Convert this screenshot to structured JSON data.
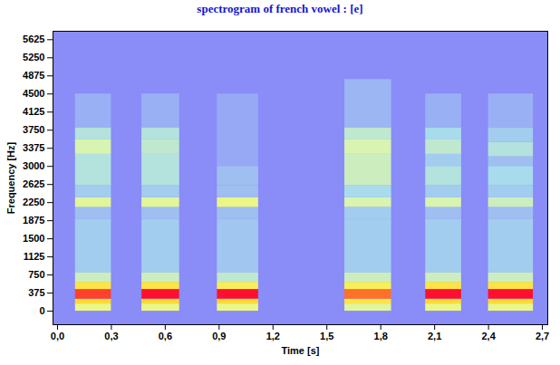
{
  "chart_data": {
    "type": "heatmap",
    "title": "spectrogram of french vowel : [e]",
    "x_label": "Time [s]",
    "y_label": "Frequency [Hz]",
    "xlim": [
      -0.025,
      2.73
    ],
    "ylim": [
      -280,
      5800
    ],
    "xticks": [
      {
        "value": 0,
        "label": "0,0"
      },
      {
        "value": 0.3,
        "label": "0,3"
      },
      {
        "value": 0.6,
        "label": "0,6"
      },
      {
        "value": 0.9,
        "label": "0,9"
      },
      {
        "value": 1.2,
        "label": "1,2"
      },
      {
        "value": 1.5,
        "label": "1,5"
      },
      {
        "value": 1.8,
        "label": "1,8"
      },
      {
        "value": 2.1,
        "label": "2,1"
      },
      {
        "value": 2.4,
        "label": "2,4"
      },
      {
        "value": 2.7,
        "label": "2,7"
      }
    ],
    "yticks": [
      0,
      375,
      750,
      1125,
      1500,
      1875,
      2250,
      2625,
      3000,
      3375,
      3750,
      4125,
      4500,
      4875,
      5250,
      5625
    ],
    "grid": false,
    "zlim": [
      0,
      1
    ],
    "segments": [
      {
        "start": 0.1,
        "end": 0.3,
        "bands": [
          [
            0,
            150,
            0.55
          ],
          [
            150,
            250,
            0.75
          ],
          [
            250,
            450,
            0.95
          ],
          [
            450,
            600,
            0.7
          ],
          [
            600,
            800,
            0.4
          ],
          [
            800,
            1900,
            0.2
          ],
          [
            1900,
            2150,
            0.15
          ],
          [
            2150,
            2350,
            0.5
          ],
          [
            2350,
            2600,
            0.2
          ],
          [
            2600,
            3250,
            0.3
          ],
          [
            3250,
            3550,
            0.45
          ],
          [
            3550,
            3800,
            0.3
          ],
          [
            3800,
            4500,
            0.1
          ]
        ]
      },
      {
        "start": 0.47,
        "end": 0.68,
        "bands": [
          [
            0,
            150,
            0.55
          ],
          [
            150,
            250,
            0.75
          ],
          [
            250,
            450,
            1.0
          ],
          [
            450,
            600,
            0.7
          ],
          [
            600,
            800,
            0.4
          ],
          [
            800,
            1900,
            0.2
          ],
          [
            1900,
            2150,
            0.15
          ],
          [
            2150,
            2350,
            0.5
          ],
          [
            2350,
            2600,
            0.2
          ],
          [
            2600,
            3250,
            0.3
          ],
          [
            3250,
            3550,
            0.35
          ],
          [
            3550,
            3800,
            0.3
          ],
          [
            3800,
            4500,
            0.1
          ]
        ]
      },
      {
        "start": 0.89,
        "end": 1.12,
        "bands": [
          [
            0,
            150,
            0.55
          ],
          [
            150,
            250,
            0.75
          ],
          [
            250,
            450,
            1.0
          ],
          [
            450,
            600,
            0.65
          ],
          [
            600,
            800,
            0.35
          ],
          [
            800,
            1900,
            0.18
          ],
          [
            1900,
            2150,
            0.15
          ],
          [
            2150,
            2350,
            0.55
          ],
          [
            2350,
            2600,
            0.15
          ],
          [
            2600,
            3000,
            0.15
          ],
          [
            3000,
            4500,
            0.08
          ]
        ]
      },
      {
        "start": 1.6,
        "end": 1.86,
        "bands": [
          [
            0,
            150,
            0.5
          ],
          [
            150,
            250,
            0.7
          ],
          [
            250,
            450,
            0.9
          ],
          [
            450,
            600,
            0.65
          ],
          [
            600,
            800,
            0.4
          ],
          [
            800,
            1900,
            0.2
          ],
          [
            1900,
            2150,
            0.2
          ],
          [
            2150,
            2350,
            0.45
          ],
          [
            2350,
            2600,
            0.25
          ],
          [
            2600,
            3250,
            0.4
          ],
          [
            3250,
            3550,
            0.45
          ],
          [
            3550,
            3800,
            0.35
          ],
          [
            3800,
            4800,
            0.12
          ]
        ]
      },
      {
        "start": 2.05,
        "end": 2.25,
        "bands": [
          [
            0,
            150,
            0.55
          ],
          [
            150,
            250,
            0.75
          ],
          [
            250,
            450,
            1.0
          ],
          [
            450,
            600,
            0.7
          ],
          [
            600,
            800,
            0.4
          ],
          [
            800,
            1900,
            0.2
          ],
          [
            1900,
            2150,
            0.15
          ],
          [
            2150,
            2350,
            0.45
          ],
          [
            2350,
            2600,
            0.2
          ],
          [
            2600,
            3000,
            0.3
          ],
          [
            3000,
            3250,
            0.2
          ],
          [
            3250,
            3550,
            0.35
          ],
          [
            3550,
            3800,
            0.25
          ],
          [
            3800,
            4500,
            0.1
          ]
        ]
      },
      {
        "start": 2.4,
        "end": 2.65,
        "bands": [
          [
            0,
            150,
            0.55
          ],
          [
            150,
            250,
            0.75
          ],
          [
            250,
            450,
            1.0
          ],
          [
            450,
            600,
            0.7
          ],
          [
            600,
            800,
            0.4
          ],
          [
            800,
            1900,
            0.2
          ],
          [
            1900,
            2150,
            0.15
          ],
          [
            2150,
            2350,
            0.4
          ],
          [
            2350,
            2600,
            0.2
          ],
          [
            2600,
            3000,
            0.25
          ],
          [
            3000,
            3200,
            0.15
          ],
          [
            3200,
            3500,
            0.3
          ],
          [
            3500,
            3800,
            0.2
          ],
          [
            3800,
            4500,
            0.1
          ]
        ]
      }
    ]
  }
}
